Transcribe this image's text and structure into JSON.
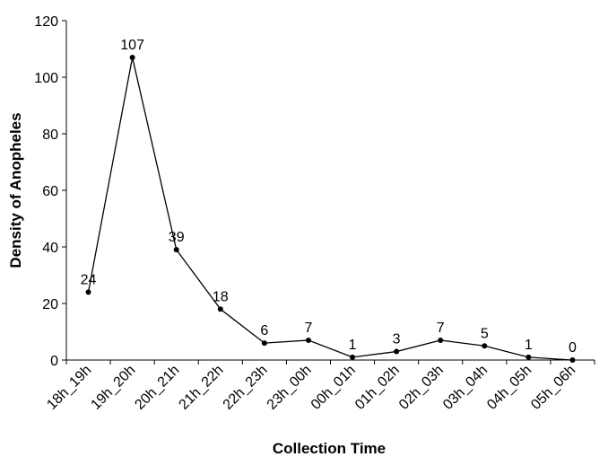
{
  "chart_data": {
    "type": "line",
    "title": "",
    "xlabel": "Collection Time",
    "ylabel": "Density of Anopheles",
    "categories": [
      "18h_19h",
      "19h_20h",
      "20h_21h",
      "21h_22h",
      "22h_23h",
      "23h_00h",
      "00h_01h",
      "01h_02h",
      "02h_03h",
      "03h_04h",
      "04h_05h",
      "05h_06h"
    ],
    "series": [
      {
        "values": [
          24,
          107,
          39,
          18,
          6,
          7,
          1,
          3,
          7,
          5,
          1,
          0
        ]
      }
    ],
    "ylim": [
      0,
      120
    ],
    "yticks": [
      0,
      20,
      40,
      60,
      80,
      100,
      120
    ],
    "grid": false,
    "legend": "none",
    "data_labels": true,
    "line_color": "#000000",
    "marker_color": "#000000"
  }
}
